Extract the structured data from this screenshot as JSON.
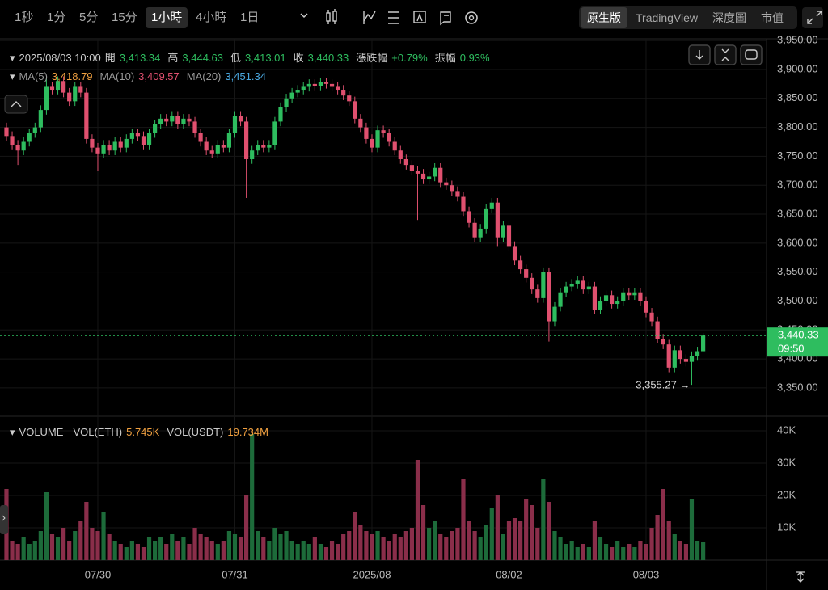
{
  "toolbar": {
    "intervals": [
      "1秒",
      "1分",
      "5分",
      "15分",
      "1小時",
      "4小時",
      "1日"
    ],
    "active_interval": 4,
    "views": [
      "原生版",
      "TradingView",
      "深度圖",
      "市值"
    ],
    "active_view": 0
  },
  "info": {
    "datetime": "2025/08/03 10:00",
    "fields": [
      {
        "label": "開",
        "value": "3,413.34"
      },
      {
        "label": "高",
        "value": "3,444.63"
      },
      {
        "label": "低",
        "value": "3,413.01"
      },
      {
        "label": "收",
        "value": "3,440.33"
      },
      {
        "label": "漲跌幅",
        "value": "+0.79%"
      },
      {
        "label": "振幅",
        "value": "0.93%"
      }
    ]
  },
  "ma": [
    {
      "name": "MA(5)",
      "value": "3,418.79",
      "color": "#f0a040"
    },
    {
      "name": "MA(10)",
      "value": "3,409.57",
      "color": "#e0506f"
    },
    {
      "name": "MA(20)",
      "value": "3,451.34",
      "color": "#4aa8e0"
    }
  ],
  "volume_legend": {
    "title": "VOLUME",
    "fields": [
      {
        "label": "VOL(ETH)",
        "value": "5.745K"
      },
      {
        "label": "VOL(USDT)",
        "value": "19.734M"
      }
    ]
  },
  "chart_data": {
    "type": "candlestick",
    "open": [
      3800,
      3785,
      3770,
      3760,
      3775,
      3790,
      3800,
      3830,
      3870,
      3865,
      3880,
      3860,
      3845,
      3870,
      3860,
      3780,
      3765,
      3755,
      3770,
      3760,
      3775,
      3765,
      3780,
      3790,
      3785,
      3770,
      3790,
      3805,
      3815,
      3810,
      3820,
      3805,
      3815,
      3810,
      3790,
      3775,
      3760,
      3755,
      3770,
      3765,
      3790,
      3820,
      3810,
      3745,
      3760,
      3770,
      3765,
      3770,
      3810,
      3835,
      3850,
      3860,
      3865,
      3870,
      3875,
      3872,
      3878,
      3875,
      3870,
      3865,
      3855,
      3845,
      3815,
      3800,
      3780,
      3765,
      3795,
      3790,
      3775,
      3760,
      3745,
      3735,
      3725,
      3720,
      3710,
      3715,
      3730,
      3705,
      3700,
      3690,
      3680,
      3655,
      3635,
      3610,
      3625,
      3660,
      3670,
      3610,
      3630,
      3595,
      3570,
      3555,
      3540,
      3520,
      3505,
      3550,
      3465,
      3490,
      3515,
      3525,
      3530,
      3535,
      3520,
      3525,
      3485,
      3500,
      3510,
      3495,
      3500,
      3515,
      3510,
      3515,
      3500,
      3480,
      3465,
      3435,
      3425,
      3385,
      3415,
      3400,
      3395,
      3405,
      3413.34
    ],
    "high": [
      3808,
      3793,
      3778,
      3783,
      3798,
      3808,
      3838,
      3885,
      3878,
      3888,
      3888,
      3868,
      3878,
      3878,
      3868,
      3788,
      3773,
      3778,
      3778,
      3783,
      3783,
      3788,
      3798,
      3798,
      3793,
      3798,
      3813,
      3823,
      3823,
      3828,
      3828,
      3823,
      3823,
      3818,
      3798,
      3783,
      3768,
      3778,
      3778,
      3798,
      3828,
      3828,
      3818,
      3768,
      3778,
      3778,
      3778,
      3818,
      3843,
      3858,
      3868,
      3873,
      3878,
      3883,
      3883,
      3886,
      3886,
      3883,
      3878,
      3873,
      3863,
      3853,
      3823,
      3808,
      3788,
      3803,
      3803,
      3798,
      3783,
      3768,
      3753,
      3743,
      3733,
      3728,
      3723,
      3738,
      3738,
      3713,
      3708,
      3698,
      3688,
      3663,
      3643,
      3633,
      3668,
      3678,
      3678,
      3638,
      3638,
      3603,
      3578,
      3563,
      3548,
      3528,
      3558,
      3558,
      3498,
      3523,
      3533,
      3538,
      3543,
      3543,
      3533,
      3533,
      3508,
      3518,
      3518,
      3508,
      3523,
      3523,
      3523,
      3523,
      3508,
      3488,
      3473,
      3443,
      3433,
      3423,
      3423,
      3408,
      3413,
      3421,
      3444.63
    ],
    "low": [
      3777,
      3762,
      3735,
      3752,
      3767,
      3782,
      3792,
      3822,
      3857,
      3857,
      3852,
      3837,
      3837,
      3852,
      3772,
      3757,
      3725,
      3747,
      3752,
      3752,
      3757,
      3757,
      3772,
      3777,
      3762,
      3762,
      3782,
      3797,
      3802,
      3802,
      3797,
      3797,
      3802,
      3782,
      3767,
      3752,
      3747,
      3747,
      3757,
      3757,
      3782,
      3802,
      3678,
      3737,
      3752,
      3757,
      3757,
      3762,
      3802,
      3827,
      3842,
      3852,
      3857,
      3862,
      3864,
      3864,
      3867,
      3862,
      3857,
      3847,
      3837,
      3807,
      3792,
      3772,
      3757,
      3757,
      3782,
      3767,
      3752,
      3737,
      3727,
      3717,
      3640,
      3702,
      3702,
      3707,
      3697,
      3692,
      3682,
      3672,
      3647,
      3627,
      3602,
      3602,
      3617,
      3652,
      3595,
      3602,
      3587,
      3562,
      3547,
      3532,
      3512,
      3497,
      3497,
      3430,
      3457,
      3482,
      3507,
      3517,
      3522,
      3512,
      3512,
      3477,
      3477,
      3492,
      3487,
      3487,
      3492,
      3502,
      3502,
      3492,
      3472,
      3457,
      3427,
      3417,
      3377,
      3377,
      3392,
      3387,
      3355.27,
      3397,
      3413.01
    ],
    "close": [
      3785,
      3770,
      3760,
      3775,
      3790,
      3800,
      3830,
      3870,
      3865,
      3880,
      3860,
      3845,
      3870,
      3860,
      3780,
      3765,
      3755,
      3770,
      3760,
      3775,
      3765,
      3780,
      3790,
      3785,
      3770,
      3790,
      3805,
      3815,
      3810,
      3820,
      3805,
      3815,
      3810,
      3790,
      3775,
      3760,
      3755,
      3770,
      3765,
      3790,
      3820,
      3810,
      3745,
      3760,
      3770,
      3765,
      3770,
      3810,
      3835,
      3850,
      3860,
      3865,
      3870,
      3875,
      3872,
      3878,
      3875,
      3870,
      3865,
      3855,
      3845,
      3815,
      3800,
      3780,
      3765,
      3795,
      3790,
      3775,
      3760,
      3745,
      3735,
      3725,
      3720,
      3710,
      3715,
      3730,
      3705,
      3700,
      3690,
      3680,
      3655,
      3635,
      3610,
      3625,
      3660,
      3670,
      3610,
      3630,
      3595,
      3570,
      3555,
      3540,
      3520,
      3505,
      3550,
      3465,
      3490,
      3515,
      3525,
      3530,
      3535,
      3520,
      3525,
      3485,
      3500,
      3510,
      3495,
      3500,
      3515,
      3510,
      3515,
      3500,
      3480,
      3465,
      3435,
      3425,
      3385,
      3415,
      3400,
      3395,
      3405,
      3413.34,
      3440.33
    ],
    "volume": [
      22000,
      6000,
      5000,
      7000,
      5000,
      6000,
      9000,
      21000,
      8000,
      7000,
      10000,
      6000,
      9000,
      12000,
      18000,
      10000,
      9000,
      15000,
      8000,
      6000,
      5000,
      4000,
      6000,
      5000,
      4000,
      7000,
      6000,
      7000,
      5000,
      8000,
      6000,
      7000,
      5000,
      10000,
      8000,
      7000,
      6000,
      5000,
      6000,
      9000,
      8000,
      7000,
      20000,
      39000,
      9000,
      7000,
      6000,
      10000,
      8000,
      9000,
      6000,
      5000,
      6000,
      5000,
      7000,
      5000,
      4000,
      6000,
      5000,
      8000,
      9000,
      15000,
      11000,
      9000,
      8000,
      9000,
      7000,
      6000,
      8000,
      7000,
      9000,
      10000,
      31000,
      17000,
      10000,
      12000,
      8000,
      7000,
      9000,
      10000,
      25000,
      12000,
      9000,
      7000,
      11000,
      16000,
      20000,
      8000,
      12000,
      13000,
      12000,
      19000,
      17000,
      10000,
      25000,
      18000,
      9000,
      7000,
      5000,
      6000,
      4000,
      5000,
      4000,
      12000,
      7000,
      5000,
      4000,
      6000,
      4000,
      5000,
      4000,
      6000,
      5000,
      10000,
      14000,
      22000,
      12000,
      8000,
      6000,
      5000,
      19000,
      6000,
      5745
    ],
    "up_color": "#2ebd5f",
    "down_color": "#e0506f",
    "vol_up_color": "#1d6b3a",
    "vol_down_color": "#8a2e4a",
    "xlim": [
      -1.13,
      133.1
    ],
    "xticks": [
      {
        "value": 16,
        "label": "07/30"
      },
      {
        "value": 40,
        "label": "07/31"
      },
      {
        "value": 64,
        "label": "2025/08"
      },
      {
        "value": 88,
        "label": "08/02"
      },
      {
        "value": 112,
        "label": "08/03"
      }
    ],
    "ylim": [
      3301,
      3953
    ],
    "yticks": [
      {
        "value": 3350,
        "label": "3,350.00"
      },
      {
        "value": 3400,
        "label": "3,400.00"
      },
      {
        "value": 3450,
        "label": "3,450.00"
      },
      {
        "value": 3500,
        "label": "3,500.00"
      },
      {
        "value": 3550,
        "label": "3,550.00"
      },
      {
        "value": 3600,
        "label": "3,600.00"
      },
      {
        "value": 3650,
        "label": "3,650.00"
      },
      {
        "value": 3700,
        "label": "3,700.00"
      },
      {
        "value": 3750,
        "label": "3,750.00"
      },
      {
        "value": 3800,
        "label": "3,800.00"
      },
      {
        "value": 3850,
        "label": "3,850.00"
      },
      {
        "value": 3900,
        "label": "3,900.00"
      },
      {
        "value": 3950,
        "label": "3,950.00"
      }
    ],
    "vlim": [
      0,
      44000
    ],
    "vticks": [
      {
        "value": 10000,
        "label": "10K"
      },
      {
        "value": 20000,
        "label": "20K"
      },
      {
        "value": 30000,
        "label": "30K"
      },
      {
        "value": 40000,
        "label": "40K"
      }
    ],
    "grid": true,
    "last_price_label": "3,440.33",
    "countdown": "09:50",
    "min_label": "3,355.27 →"
  }
}
